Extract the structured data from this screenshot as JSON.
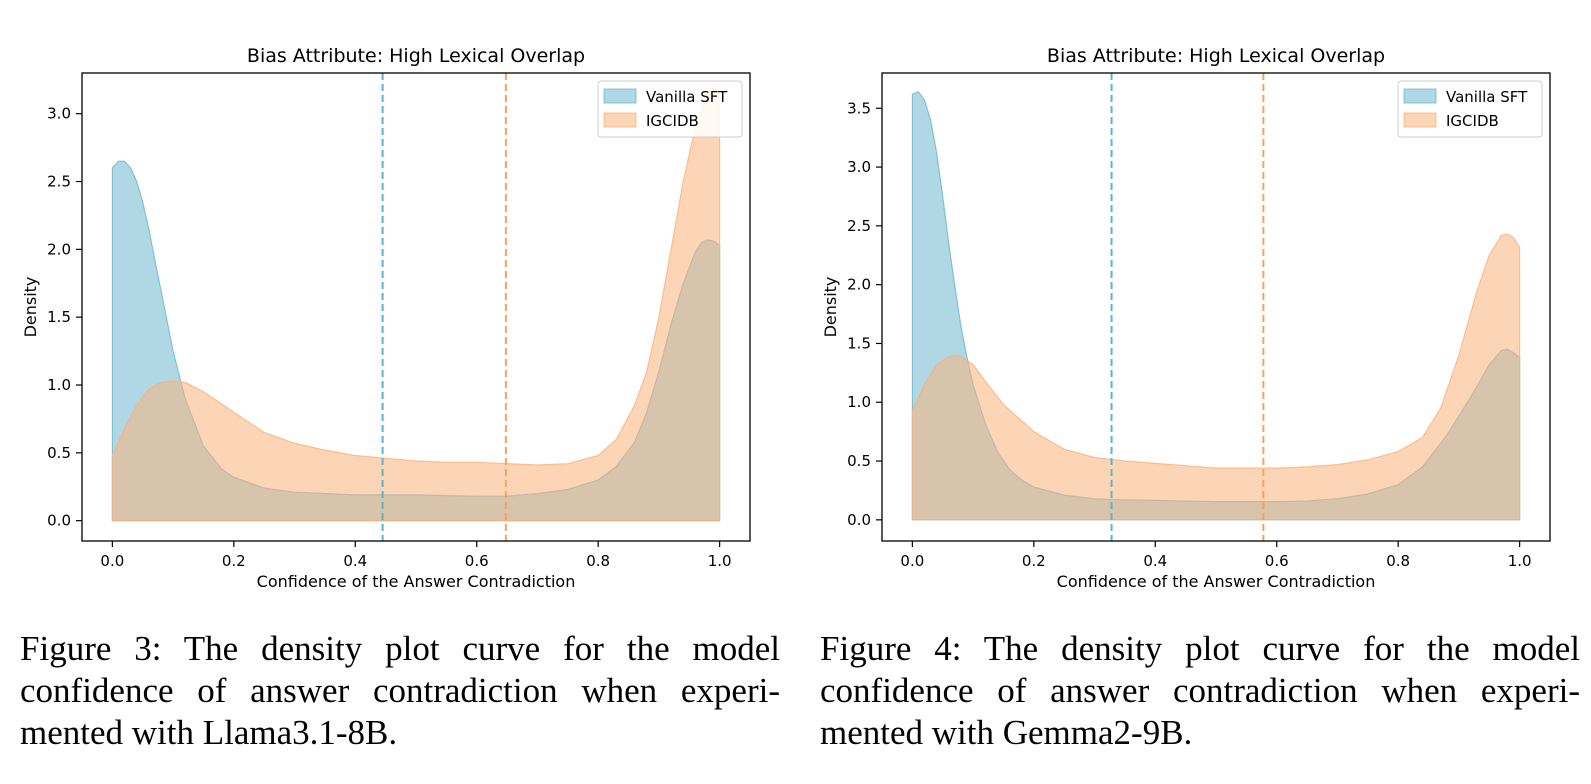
{
  "colors": {
    "vanilla": "#6fb6cd",
    "igcidb": "#fab27c",
    "vanilla_line": "#5ab4d0",
    "igcidb_line": "#f5a25d"
  },
  "figures": [
    {
      "caption": "Figure 3: The density plot curve for the model confidence of answer contradiction when experi-mented with Llama3.1-8B."
    },
    {
      "caption": "Figure 4: The density plot curve for the model confidence of answer contradiction when experi-mented with Gemma2-9B."
    }
  ],
  "chart_data": [
    {
      "type": "area",
      "title": "Bias Attribute: High Lexical Overlap",
      "xlabel": "Confidence of the Answer Contradiction",
      "ylabel": "Density",
      "xlim": [
        -0.05,
        1.05
      ],
      "ylim": [
        -0.15,
        3.3
      ],
      "xticks": [
        "0.0",
        "0.2",
        "0.4",
        "0.6",
        "0.8",
        "1.0"
      ],
      "yticks": [
        "0.0",
        "0.5",
        "1.0",
        "1.5",
        "2.0",
        "2.5",
        "3.0"
      ],
      "legend": "top-right",
      "grid": false,
      "series": [
        {
          "name": "Vanilla SFT",
          "x": [
            0.0,
            0.01,
            0.02,
            0.03,
            0.04,
            0.05,
            0.06,
            0.07,
            0.08,
            0.1,
            0.12,
            0.15,
            0.18,
            0.2,
            0.25,
            0.3,
            0.35,
            0.4,
            0.45,
            0.5,
            0.55,
            0.6,
            0.65,
            0.7,
            0.75,
            0.8,
            0.83,
            0.86,
            0.88,
            0.9,
            0.92,
            0.94,
            0.96,
            0.97,
            0.98,
            0.99,
            1.0
          ],
          "y": [
            2.6,
            2.65,
            2.65,
            2.6,
            2.5,
            2.35,
            2.15,
            1.92,
            1.7,
            1.25,
            0.9,
            0.55,
            0.38,
            0.32,
            0.24,
            0.21,
            0.2,
            0.19,
            0.19,
            0.19,
            0.185,
            0.18,
            0.18,
            0.2,
            0.23,
            0.3,
            0.4,
            0.58,
            0.8,
            1.1,
            1.45,
            1.75,
            1.98,
            2.05,
            2.07,
            2.06,
            2.03
          ]
        },
        {
          "name": "IGCIDB",
          "x": [
            0.0,
            0.02,
            0.04,
            0.06,
            0.08,
            0.1,
            0.12,
            0.15,
            0.2,
            0.25,
            0.3,
            0.35,
            0.4,
            0.45,
            0.5,
            0.55,
            0.6,
            0.65,
            0.7,
            0.75,
            0.8,
            0.83,
            0.86,
            0.88,
            0.9,
            0.92,
            0.94,
            0.96,
            0.98,
            0.99,
            1.0
          ],
          "y": [
            0.48,
            0.68,
            0.85,
            0.97,
            1.02,
            1.03,
            1.02,
            0.95,
            0.8,
            0.65,
            0.57,
            0.52,
            0.48,
            0.46,
            0.44,
            0.43,
            0.43,
            0.42,
            0.41,
            0.42,
            0.48,
            0.6,
            0.85,
            1.1,
            1.5,
            2.0,
            2.5,
            2.9,
            3.15,
            3.2,
            3.1
          ]
        }
      ],
      "vlines": [
        {
          "series": "Vanilla SFT",
          "x": 0.445
        },
        {
          "series": "IGCIDB",
          "x": 0.648
        }
      ]
    },
    {
      "type": "area",
      "title": "Bias Attribute: High Lexical Overlap",
      "xlabel": "Confidence of the Answer Contradiction",
      "ylabel": "Density",
      "xlim": [
        -0.05,
        1.05
      ],
      "ylim": [
        -0.18,
        3.8
      ],
      "xticks": [
        "0.0",
        "0.2",
        "0.4",
        "0.6",
        "0.8",
        "1.0"
      ],
      "yticks": [
        "0.0",
        "0.5",
        "1.0",
        "1.5",
        "2.0",
        "2.5",
        "3.0",
        "3.5"
      ],
      "legend": "top-right",
      "grid": false,
      "series": [
        {
          "name": "Vanilla SFT",
          "x": [
            0.0,
            0.01,
            0.02,
            0.03,
            0.04,
            0.05,
            0.06,
            0.07,
            0.08,
            0.09,
            0.1,
            0.12,
            0.14,
            0.16,
            0.18,
            0.2,
            0.25,
            0.3,
            0.35,
            0.4,
            0.45,
            0.5,
            0.55,
            0.6,
            0.65,
            0.7,
            0.75,
            0.8,
            0.84,
            0.88,
            0.92,
            0.95,
            0.97,
            0.98,
            0.99,
            1.0
          ],
          "y": [
            3.62,
            3.64,
            3.57,
            3.4,
            3.12,
            2.75,
            2.35,
            1.98,
            1.65,
            1.38,
            1.15,
            0.82,
            0.58,
            0.43,
            0.34,
            0.28,
            0.21,
            0.18,
            0.17,
            0.165,
            0.16,
            0.155,
            0.155,
            0.155,
            0.16,
            0.18,
            0.22,
            0.3,
            0.45,
            0.72,
            1.05,
            1.32,
            1.44,
            1.45,
            1.42,
            1.38
          ]
        },
        {
          "name": "IGCIDB",
          "x": [
            0.0,
            0.02,
            0.04,
            0.06,
            0.07,
            0.08,
            0.1,
            0.12,
            0.15,
            0.2,
            0.25,
            0.3,
            0.35,
            0.4,
            0.45,
            0.5,
            0.55,
            0.6,
            0.65,
            0.7,
            0.75,
            0.8,
            0.84,
            0.87,
            0.9,
            0.93,
            0.95,
            0.97,
            0.98,
            0.99,
            1.0
          ],
          "y": [
            0.93,
            1.15,
            1.32,
            1.39,
            1.4,
            1.39,
            1.32,
            1.18,
            0.98,
            0.75,
            0.6,
            0.53,
            0.5,
            0.48,
            0.46,
            0.44,
            0.44,
            0.44,
            0.45,
            0.47,
            0.51,
            0.58,
            0.7,
            0.95,
            1.4,
            1.95,
            2.25,
            2.42,
            2.43,
            2.4,
            2.32
          ]
        }
      ],
      "vlines": [
        {
          "series": "Vanilla SFT",
          "x": 0.328
        },
        {
          "series": "IGCIDB",
          "x": 0.578
        }
      ]
    }
  ]
}
